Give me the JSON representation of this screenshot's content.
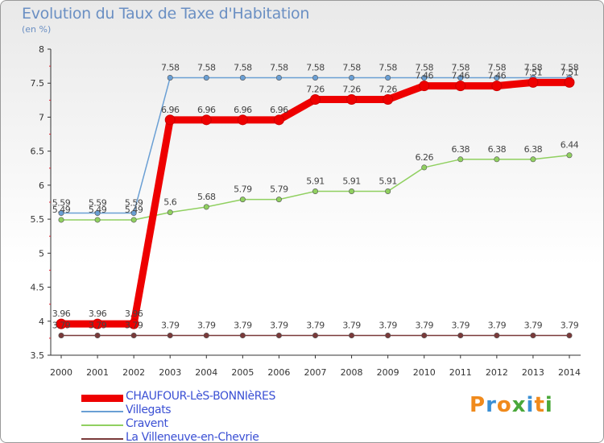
{
  "chart_data": {
    "type": "line",
    "title": "Evolution du Taux de Taxe d'Habitation",
    "ylabel": "(en %)",
    "xlabel": "",
    "ylim": [
      3.5,
      8
    ],
    "yticks": [
      "3.5",
      "4",
      "4.5",
      "5",
      "5.5",
      "6",
      "6.5",
      "7",
      "7.5",
      "8"
    ],
    "categories": [
      "2000",
      "2001",
      "2002",
      "2003",
      "2004",
      "2005",
      "2006",
      "2007",
      "2008",
      "2009",
      "2010",
      "2011",
      "2012",
      "2013",
      "2014"
    ],
    "series": [
      {
        "name": "CHAUFOUR-LèS-BONNIèRES",
        "color": "#ee0000",
        "values": [
          3.96,
          3.96,
          3.96,
          6.96,
          6.96,
          6.96,
          6.96,
          7.26,
          7.26,
          7.26,
          7.46,
          7.46,
          7.46,
          7.51,
          7.51
        ],
        "labels": [
          "3.96",
          "3.96",
          "3.96",
          "6.96",
          "6.96",
          "6.96",
          "6.96",
          "7.26",
          "7.26",
          "7.26",
          "7.46",
          "7.46",
          "7.46",
          "7.51",
          "7.51"
        ]
      },
      {
        "name": "Villegats",
        "color": "#6a9fd4",
        "values": [
          5.59,
          5.59,
          5.59,
          7.58,
          7.58,
          7.58,
          7.58,
          7.58,
          7.58,
          7.58,
          7.58,
          7.58,
          7.58,
          7.58,
          7.58
        ],
        "labels": [
          "5.59",
          "5.59",
          "5.59",
          "7.58",
          "7.58",
          "7.58",
          "7.58",
          "7.58",
          "7.58",
          "7.58",
          "7.58",
          "7.58",
          "7.58",
          "7.58",
          "7.58"
        ]
      },
      {
        "name": "Cravent",
        "color": "#90d060",
        "values": [
          5.49,
          5.49,
          5.49,
          5.6,
          5.68,
          5.79,
          5.79,
          5.91,
          5.91,
          5.91,
          6.26,
          6.38,
          6.38,
          6.38,
          6.44
        ],
        "labels": [
          "5.49",
          "5.49",
          "5.49",
          "5.6",
          "5.68",
          "5.79",
          "5.79",
          "5.91",
          "5.91",
          "5.91",
          "6.26",
          "6.38",
          "6.38",
          "6.38",
          "6.44"
        ]
      },
      {
        "name": "La Villeneuve-en-Chevrie",
        "color": "#7a3a3a",
        "values": [
          3.79,
          3.79,
          3.79,
          3.79,
          3.79,
          3.79,
          3.79,
          3.79,
          3.79,
          3.79,
          3.79,
          3.79,
          3.79,
          3.79,
          3.79
        ],
        "labels": [
          "3.79",
          "3.79",
          "3.79",
          "3.79",
          "3.79",
          "3.79",
          "3.79",
          "3.79",
          "3.79",
          "3.79",
          "3.79",
          "3.79",
          "3.79",
          "3.79",
          "3.79"
        ]
      }
    ],
    "grid": false,
    "legend": "bottom-left"
  },
  "logo": {
    "text": "Proxiti",
    "colors": [
      "#f08a1c",
      "#3a8fd4",
      "#f08a1c",
      "#4aa83a",
      "#3a8fd4",
      "#f08a1c",
      "#4aa83a"
    ]
  }
}
